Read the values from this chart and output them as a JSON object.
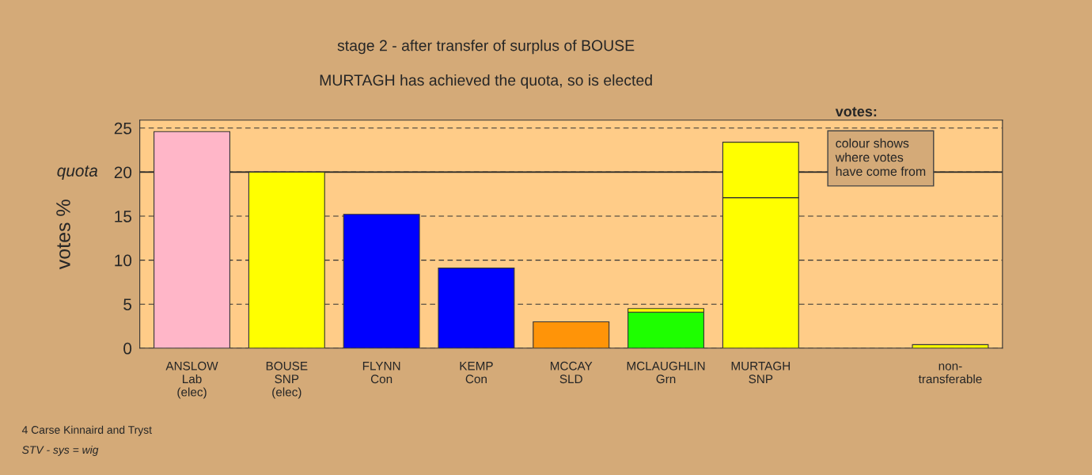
{
  "chart_data": {
    "type": "bar",
    "stacked": true,
    "title": "stage 2 - after transfer of surplus of BOUSE",
    "subtitle": "MURTAGH has achieved the quota, so is elected",
    "ylabel": "votes %",
    "categories": [
      "ANSLOW\nLab\n(elec)",
      "BOUSE\nSNP\n(elec)",
      "FLYNN\nCon",
      "KEMP\nCon",
      "MCCAY\nSLD",
      "MCLAUGHLIN\nGrn",
      "MURTAGH\nSNP",
      null,
      "non-\ntransferable"
    ],
    "series": [
      {
        "colors": [
          "#ffb6c8",
          "#ffff00",
          "#0000ff",
          "#0000ff",
          "#ff9408",
          "#1eff00",
          "#ffff00",
          null,
          null
        ],
        "values": [
          24.6,
          20.0,
          15.2,
          9.1,
          3.0,
          4.1,
          17.1,
          null,
          null
        ]
      },
      {
        "color": "#ffff00",
        "values": [
          null,
          null,
          null,
          null,
          null,
          0.4,
          6.3,
          null,
          0.4
        ]
      }
    ],
    "ylim": [
      0,
      25.9
    ],
    "yticks": [
      0,
      5,
      10,
      15,
      20,
      25
    ],
    "grid": "y",
    "ref_lines": [
      {
        "axis": "y",
        "value": 20,
        "label": "quota"
      }
    ],
    "annotations": [
      "votes:",
      "colour shows\nwhere votes\nhave come from",
      "4 Carse Kinnaird and Tryst",
      "STV - sys = wig"
    ]
  }
}
